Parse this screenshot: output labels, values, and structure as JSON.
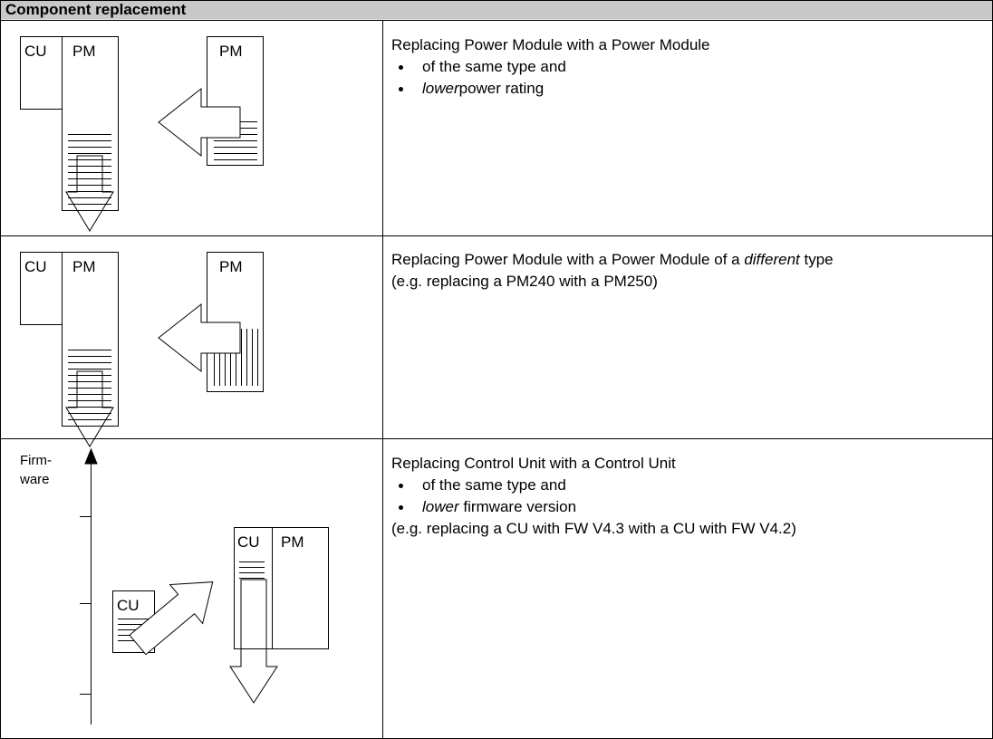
{
  "header": {
    "title": "Component replacement"
  },
  "rows": [
    {
      "diagram": {
        "labels": [
          "CU",
          "PM",
          "PM"
        ]
      },
      "text": {
        "title": "Replacing Power Module with a Power Module",
        "bullets": [
          "of the same type and",
          {
            "em": "lower",
            "rest": "power rating"
          }
        ]
      }
    },
    {
      "diagram": {
        "labels": [
          "CU",
          "PM",
          "PM"
        ]
      },
      "text": {
        "title": {
          "before": "Replacing Power Module with a Power Module of a ",
          "em": "different",
          "after": " type"
        },
        "note": "(e.g. replacing a PM240 with a PM250)"
      }
    },
    {
      "diagram": {
        "axis": [
          "Firm-",
          "ware"
        ],
        "labels": [
          "CU",
          "PM",
          "CU"
        ]
      },
      "text": {
        "title": "Replacing Control Unit with a Control Unit",
        "bullets": [
          "of the same type and",
          {
            "em": "lower",
            "rest": " firmware version"
          }
        ],
        "note": "(e.g. replacing a CU with FW V4.3 with a CU with FW V4.2)"
      }
    }
  ]
}
